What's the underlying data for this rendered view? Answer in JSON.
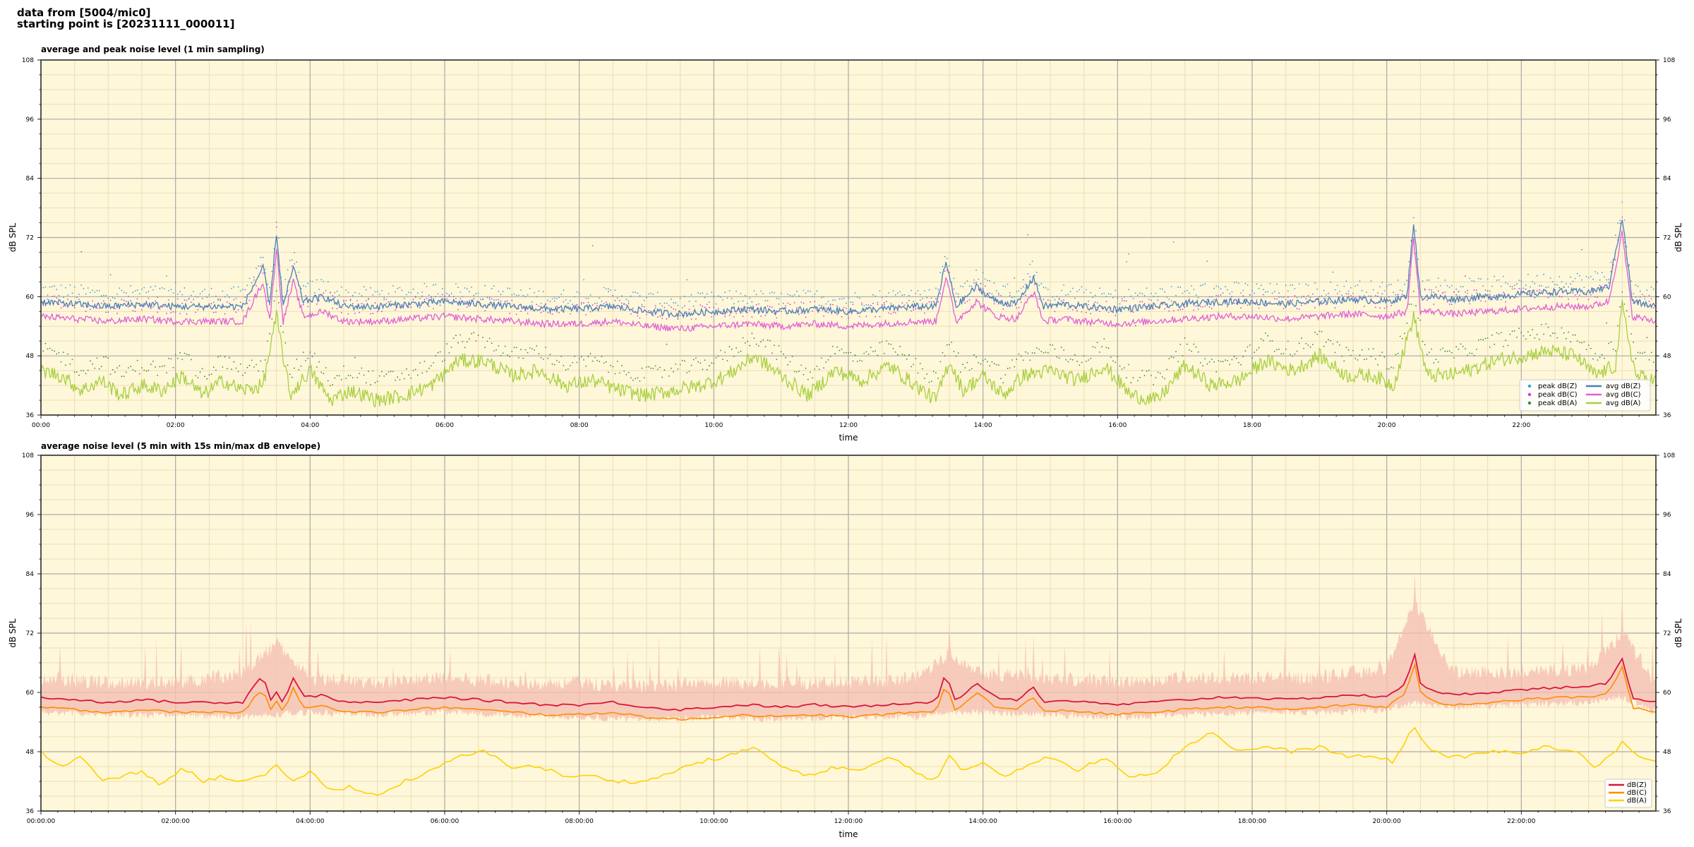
{
  "header": {
    "line1": "data from [5004/mic0]",
    "line2": "starting point is [20231111_000011]"
  },
  "colors": {
    "plot_bg": "#fff7d9",
    "grid_major": "#aaaaaa",
    "grid_minor": "#eadfb5",
    "peak_z": "#3b9fd9",
    "peak_c": "#d63ad6",
    "peak_a": "#3a8a3a",
    "avg_z": "#4a7fb8",
    "avg_c": "#e060d8",
    "avg_a": "#a8d040",
    "env": "#f5bfb3",
    "dbz": "#d9163a",
    "dbc": "#ff8c00",
    "dba": "#ffd000"
  },
  "chart_data": [
    {
      "type": "line",
      "title": "average and peak noise level (1 min sampling)",
      "xlabel": "time",
      "ylabel": "dB SPL",
      "ylim": [
        36,
        108
      ],
      "xlim_hours": [
        0,
        24
      ],
      "yticks": [
        "108",
        "96",
        "84",
        "72",
        "60",
        "48",
        "36"
      ],
      "xticks": [
        "00:00",
        "02:00",
        "04:00",
        "06:00",
        "08:00",
        "10:00",
        "12:00",
        "14:00",
        "16:00",
        "18:00",
        "20:00",
        "22:00"
      ],
      "grid": true,
      "legend_position": "lower-right",
      "legend": [
        "peak dB(Z)",
        "peak dB(C)",
        "peak dB(A)",
        "avg dB(Z)",
        "avg dB(C)",
        "avg dB(A)"
      ],
      "series": [
        {
          "name": "avg dB(Z)",
          "x_hours": [
            0,
            0.5,
            1,
            1.5,
            2,
            2.5,
            3,
            3.3,
            3.4,
            3.5,
            3.6,
            3.75,
            3.9,
            4.2,
            4.5,
            5,
            5.5,
            6,
            6.5,
            7,
            7.5,
            8,
            8.5,
            9,
            9.5,
            10,
            10.5,
            11,
            11.5,
            12,
            12.5,
            13,
            13.3,
            13.45,
            13.6,
            13.9,
            14.2,
            14.5,
            14.75,
            14.9,
            15.2,
            15.5,
            16,
            16.5,
            17,
            17.5,
            18,
            18.5,
            19,
            19.5,
            20,
            20.3,
            20.4,
            20.5,
            20.7,
            21,
            21.5,
            22,
            22.5,
            23,
            23.3,
            23.5,
            23.65,
            24
          ],
          "y": [
            59,
            58.5,
            58,
            58.5,
            58,
            58,
            58,
            66,
            58,
            73,
            58,
            66,
            59,
            60,
            58,
            58,
            58.5,
            59,
            58.5,
            58,
            57.5,
            57.5,
            58,
            57,
            56.5,
            57,
            57.5,
            57,
            57.5,
            57,
            57.5,
            58,
            58,
            67,
            58,
            62,
            59,
            58.5,
            64,
            58,
            58.5,
            58,
            57.5,
            58,
            58.5,
            59,
            59,
            58.5,
            59,
            59.5,
            59,
            60,
            75,
            60,
            60,
            59.5,
            60,
            60.5,
            61,
            61,
            62,
            76,
            59,
            58
          ]
        },
        {
          "name": "avg dB(C)",
          "x_hours": [
            0,
            0.5,
            1,
            1.5,
            2,
            2.5,
            3,
            3.3,
            3.4,
            3.5,
            3.6,
            3.75,
            3.9,
            4.2,
            4.5,
            5,
            5.5,
            6,
            6.5,
            7,
            7.5,
            8,
            8.5,
            9,
            9.5,
            10,
            10.5,
            11,
            11.5,
            12,
            12.5,
            13,
            13.3,
            13.45,
            13.6,
            13.9,
            14.2,
            14.5,
            14.75,
            14.9,
            15.2,
            15.5,
            16,
            16.5,
            17,
            17.5,
            18,
            18.5,
            19,
            19.5,
            20,
            20.3,
            20.4,
            20.5,
            20.7,
            21,
            21.5,
            22,
            22.5,
            23,
            23.3,
            23.5,
            23.65,
            24
          ],
          "y": [
            56,
            55.5,
            55,
            55.5,
            55,
            55,
            55,
            63,
            55,
            70,
            55,
            63,
            56,
            57,
            55,
            55,
            55.5,
            56,
            55.5,
            55,
            54.5,
            54.5,
            55,
            54,
            53.5,
            54,
            54.5,
            54,
            54.5,
            54,
            54.5,
            55,
            55,
            64,
            55,
            59,
            56,
            55.5,
            61,
            55,
            55.5,
            55,
            54.5,
            55,
            55.5,
            56,
            56,
            55.5,
            56,
            56.5,
            56,
            57,
            72,
            57,
            57,
            56.5,
            57,
            57.5,
            58,
            58,
            59,
            73,
            56,
            55
          ]
        },
        {
          "name": "avg dB(A)",
          "x_hours": [
            0,
            0.3,
            0.6,
            0.9,
            1.2,
            1.5,
            1.8,
            2.1,
            2.4,
            2.7,
            3,
            3.3,
            3.5,
            3.7,
            4,
            4.3,
            4.6,
            5,
            5.4,
            5.8,
            6.2,
            6.6,
            7,
            7.4,
            7.8,
            8.2,
            8.6,
            9,
            9.4,
            9.8,
            10.2,
            10.6,
            11,
            11.4,
            11.8,
            12.2,
            12.6,
            13,
            13.3,
            13.5,
            13.7,
            14,
            14.3,
            14.6,
            15,
            15.4,
            15.8,
            16.2,
            16.6,
            17,
            17.4,
            17.8,
            18.2,
            18.6,
            19,
            19.4,
            19.8,
            20.1,
            20.4,
            20.6,
            20.9,
            21.2,
            21.6,
            22,
            22.4,
            22.8,
            23.1,
            23.4,
            23.5,
            23.7,
            24
          ],
          "y": [
            45,
            44,
            41,
            43,
            40,
            42,
            41,
            44,
            40,
            43,
            41,
            42,
            56,
            40,
            45,
            39,
            41,
            39,
            40,
            42,
            47,
            47,
            44,
            45,
            42,
            43,
            41,
            40,
            41,
            42,
            44,
            48,
            44,
            40,
            45,
            43,
            46,
            42,
            39,
            47,
            41,
            44,
            40,
            44,
            45,
            43,
            46,
            40,
            39,
            46,
            42,
            43,
            47,
            45,
            48,
            44,
            44,
            42,
            56,
            44,
            44,
            45,
            47,
            48,
            49,
            48,
            44,
            46,
            58,
            44,
            43
          ]
        }
      ]
    },
    {
      "type": "line",
      "title": "average noise level (5 min with 15s min/max dB envelope)",
      "xlabel": "time",
      "ylabel": "dB SPL",
      "ylim": [
        36,
        108
      ],
      "xlim_hours": [
        0,
        24
      ],
      "yticks": [
        "108",
        "96",
        "84",
        "72",
        "60",
        "48",
        "36"
      ],
      "xticks": [
        "00:00:00",
        "02:00:00",
        "04:00:00",
        "06:00:00",
        "08:00:00",
        "10:00:00",
        "12:00:00",
        "14:00:00",
        "16:00:00",
        "18:00:00",
        "20:00:00",
        "22:00:00"
      ],
      "grid": true,
      "legend_position": "lower-right",
      "legend": [
        "dB(Z)",
        "dB(C)",
        "dB(A)"
      ],
      "series": [
        {
          "name": "dB(Z)",
          "x_hours": [
            0,
            0.5,
            1,
            1.5,
            2,
            2.5,
            3,
            3.3,
            3.4,
            3.5,
            3.6,
            3.75,
            3.9,
            4.2,
            4.5,
            5,
            5.5,
            6,
            6.5,
            7,
            7.5,
            8,
            8.5,
            9,
            9.5,
            10,
            10.5,
            11,
            11.5,
            12,
            12.5,
            13,
            13.3,
            13.45,
            13.6,
            13.9,
            14.2,
            14.5,
            14.75,
            14.9,
            15.2,
            15.5,
            16,
            16.5,
            17,
            17.5,
            18,
            18.5,
            19,
            19.5,
            20,
            20.3,
            20.4,
            20.5,
            20.7,
            21,
            21.5,
            22,
            22.5,
            23,
            23.3,
            23.5,
            23.65,
            24
          ],
          "y": [
            59,
            58.5,
            58,
            58.5,
            58,
            58,
            58,
            64,
            58,
            60,
            58,
            63,
            59,
            59.5,
            58,
            58,
            58.5,
            59,
            58.5,
            58,
            57.5,
            57.5,
            58,
            57,
            56.5,
            57,
            57.5,
            57,
            57.5,
            57,
            57.5,
            58,
            58,
            64,
            58,
            62,
            59,
            58.5,
            61,
            58,
            58.5,
            58,
            57.5,
            58,
            58.5,
            59,
            59,
            58.5,
            59,
            59.5,
            59,
            62,
            69,
            62,
            60,
            59.5,
            60,
            60.5,
            61,
            61,
            62,
            67,
            59,
            58
          ]
        },
        {
          "name": "dB(C)",
          "x_hours": [
            0,
            0.5,
            1,
            1.5,
            2,
            2.5,
            3,
            3.3,
            3.4,
            3.5,
            3.6,
            3.75,
            3.9,
            4.2,
            4.5,
            5,
            5.5,
            6,
            6.5,
            7,
            7.5,
            8,
            8.5,
            9,
            9.5,
            10,
            10.5,
            11,
            11.5,
            12,
            12.5,
            13,
            13.3,
            13.45,
            13.6,
            13.9,
            14.2,
            14.5,
            14.75,
            14.9,
            15.2,
            15.5,
            16,
            16.5,
            17,
            17.5,
            18,
            18.5,
            19,
            19.5,
            20,
            20.3,
            20.4,
            20.5,
            20.7,
            21,
            21.5,
            22,
            22.5,
            23,
            23.3,
            23.5,
            23.65,
            24
          ],
          "y": [
            57,
            56.5,
            56,
            56.5,
            56,
            56,
            56,
            61,
            56,
            58,
            56,
            61,
            57,
            57.5,
            56,
            56,
            56.5,
            57,
            56.5,
            56,
            55.5,
            55.5,
            56,
            55,
            54.5,
            55,
            55.5,
            55,
            55.5,
            55,
            55.5,
            56,
            56,
            62,
            56,
            60,
            57,
            56.5,
            59,
            56,
            56.5,
            56,
            55.5,
            56,
            56.5,
            57,
            57,
            56.5,
            57,
            57.5,
            57,
            60,
            67,
            60,
            58,
            57.5,
            58,
            58.5,
            59,
            59,
            60,
            65,
            57,
            56
          ]
        },
        {
          "name": "dB(A)",
          "x_hours": [
            0,
            0.3,
            0.6,
            0.9,
            1.2,
            1.5,
            1.8,
            2.1,
            2.4,
            2.7,
            3,
            3.3,
            3.5,
            3.7,
            4,
            4.3,
            4.6,
            5,
            5.4,
            5.8,
            6.2,
            6.6,
            7,
            7.4,
            7.8,
            8.2,
            8.6,
            9,
            9.4,
            9.8,
            10.2,
            10.6,
            11,
            11.4,
            11.8,
            12.2,
            12.6,
            13,
            13.3,
            13.5,
            13.7,
            14,
            14.3,
            14.6,
            15,
            15.4,
            15.8,
            16.2,
            16.6,
            17,
            17.4,
            17.8,
            18.2,
            18.6,
            19,
            19.4,
            19.8,
            20.1,
            20.4,
            20.6,
            20.9,
            21.2,
            21.6,
            22,
            22.4,
            22.8,
            23.1,
            23.4,
            23.5,
            23.7,
            24
          ],
          "y": [
            48,
            45,
            47,
            42,
            43,
            44,
            41,
            45,
            42,
            43,
            42,
            43,
            45,
            42,
            44,
            40,
            41,
            39,
            42,
            44,
            47,
            48,
            45,
            45,
            43,
            43,
            42,
            42,
            44,
            46,
            47,
            49,
            45,
            43,
            45,
            44,
            47,
            44,
            42,
            47,
            44,
            46,
            43,
            45,
            47,
            44,
            47,
            43,
            44,
            49,
            52,
            48,
            49,
            48,
            49,
            47,
            47,
            46,
            53,
            49,
            47,
            47,
            48,
            48,
            49,
            48,
            45,
            48,
            50,
            47,
            46
          ]
        },
        {
          "name": "envelope",
          "x_hours": [
            0,
            1,
            2,
            3,
            3.5,
            4,
            5,
            6,
            7,
            8,
            9,
            10,
            11,
            12,
            13,
            13.5,
            14,
            15,
            16,
            17,
            18,
            19,
            20,
            20.4,
            21,
            22,
            23,
            23.5,
            24
          ],
          "y_min": [
            56,
            55.5,
            55.5,
            55,
            55.5,
            56,
            55.5,
            56,
            55.5,
            55,
            54.5,
            55,
            54.5,
            55,
            55,
            56,
            56,
            55.5,
            55,
            55.5,
            56,
            56,
            56.5,
            58,
            57,
            57.5,
            58,
            59,
            56
          ],
          "y_max": [
            63,
            62,
            62,
            64,
            70,
            63,
            62,
            63,
            62,
            62,
            61,
            62,
            62,
            62,
            63,
            68,
            64,
            63,
            62,
            63,
            63,
            63,
            65,
            78,
            64,
            64,
            65,
            72,
            62
          ]
        }
      ]
    }
  ]
}
